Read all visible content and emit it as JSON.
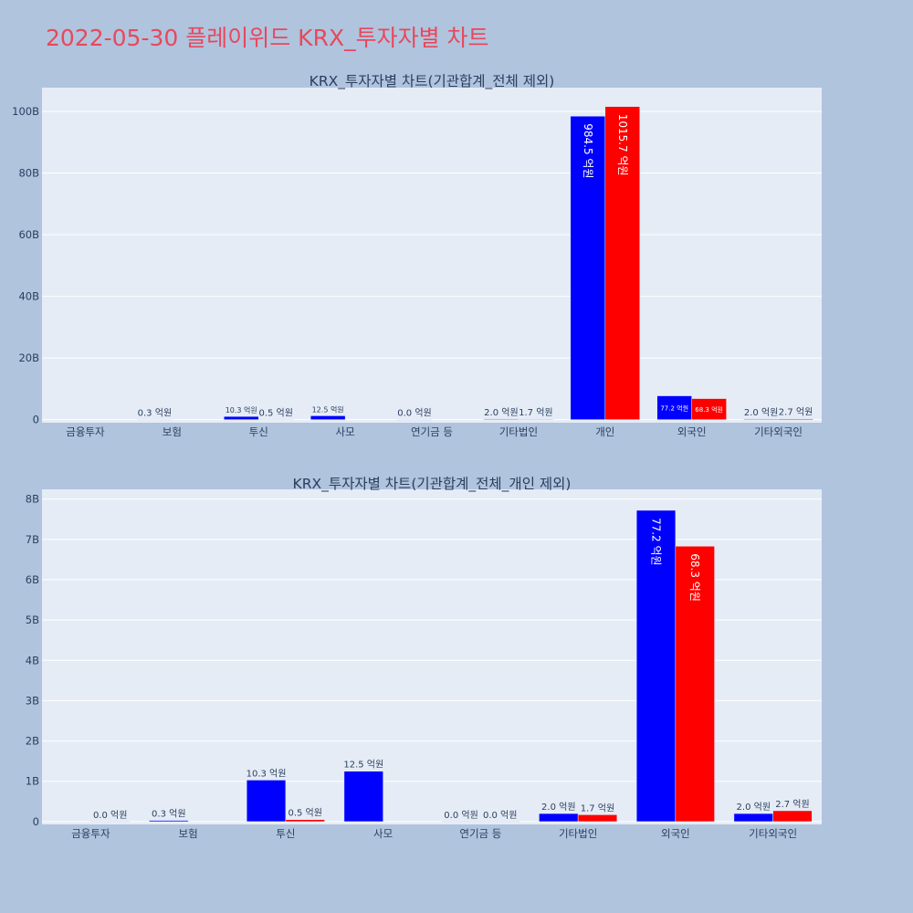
{
  "page": {
    "title": "2022-05-30 플레이위드 KRX_투자자별 차트",
    "background": "#b0c4de",
    "title_color": "#e8485c"
  },
  "series_colors": [
    "#0000ff",
    "#ff0000"
  ],
  "chart_data": [
    {
      "type": "bar",
      "title": "KRX_투자자별 차트(기관합계_전체 제외)",
      "categories": [
        "금융투자",
        "보험",
        "투신",
        "사모",
        "연기금 등",
        "기타법인",
        "개인",
        "외국인",
        "기타외국인"
      ],
      "series": [
        {
          "values": [
            null,
            30000000,
            1030000000,
            1250000000,
            0,
            200000000,
            98450000000,
            7720000000,
            200000000
          ],
          "labels": [
            "",
            "0.3 억원",
            "10.3 억원",
            "12.5 억원",
            "0.0 억원",
            "2.0 억원",
            "984.5 억원",
            "77.2 억원",
            "2.0 억원"
          ]
        },
        {
          "values": [
            null,
            null,
            50000000,
            null,
            null,
            170000000,
            101570000000,
            6830000000,
            270000000
          ],
          "labels": [
            "",
            "",
            "0.5 억원",
            "",
            "",
            "1.7 억원",
            "1015.7 억원",
            "68.3 억원",
            "2.7 억원"
          ]
        }
      ],
      "yticks": [
        0,
        20000000000,
        40000000000,
        60000000000,
        80000000000,
        100000000000
      ],
      "ytick_labels": [
        "0",
        "20B",
        "40B",
        "60B",
        "80B",
        "100B"
      ],
      "ylim": [
        -1000000000,
        107700000000
      ],
      "grid": true,
      "legend": "none"
    },
    {
      "type": "bar",
      "title": "KRX_투자자별 차트(기관합계_전체_개인 제외)",
      "categories": [
        "금융투자",
        "보험",
        "투신",
        "사모",
        "연기금 등",
        "기타법인",
        "외국인",
        "기타외국인"
      ],
      "series": [
        {
          "values": [
            null,
            30000000,
            1030000000,
            1250000000,
            0,
            200000000,
            7720000000,
            200000000
          ],
          "labels": [
            "",
            "0.3 억원",
            "10.3 억원",
            "12.5 억원",
            "0.0 억원",
            "2.0 억원",
            "77.2 억원",
            "2.0 억원"
          ]
        },
        {
          "values": [
            0,
            null,
            50000000,
            null,
            0,
            170000000,
            6830000000,
            270000000
          ],
          "labels": [
            "0.0 억원",
            "",
            "0.5 억원",
            "",
            "0.0 억원",
            "1.7 억원",
            "68.3 억원",
            "2.7 억원"
          ]
        }
      ],
      "yticks": [
        0,
        1000000000,
        2000000000,
        3000000000,
        4000000000,
        5000000000,
        6000000000,
        7000000000,
        8000000000
      ],
      "ytick_labels": [
        "0",
        "1B",
        "2B",
        "3B",
        "4B",
        "5B",
        "6B",
        "7B",
        "8B"
      ],
      "ylim": [
        -70000000,
        8240000000
      ],
      "grid": true,
      "legend": "none"
    }
  ]
}
